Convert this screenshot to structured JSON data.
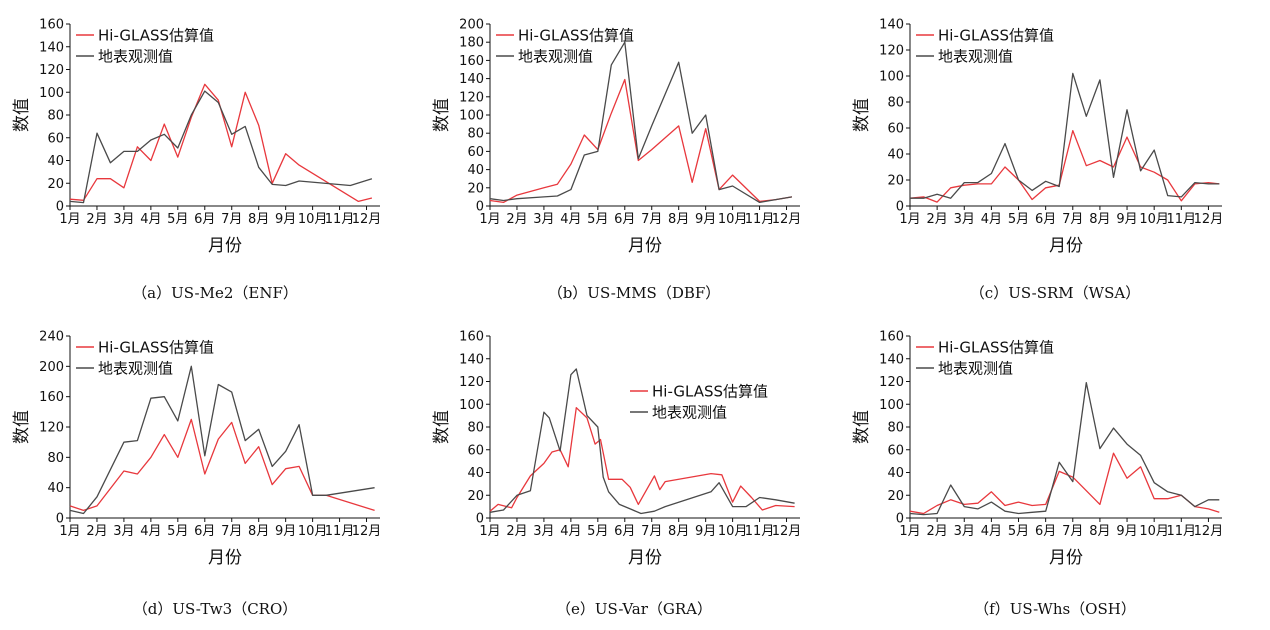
{
  "colors": {
    "estimate": "#e8383d",
    "ground": "#4a4a4a"
  },
  "chart_data": [
    {
      "type": "line",
      "caption": "（a）US-Me2（ENF）",
      "xlabel": "月份",
      "ylabel": "数值",
      "x_ticks": [
        "1月",
        "2月",
        "3月",
        "4月",
        "5月",
        "6月",
        "7月",
        "8月",
        "9月",
        "10月",
        "11月",
        "12月"
      ],
      "xlim": [
        1,
        12.5
      ],
      "ylim": [
        0,
        160
      ],
      "y_ticks": [
        0,
        20,
        40,
        60,
        80,
        100,
        120,
        140,
        160
      ],
      "legend_position": "top-left",
      "series": [
        {
          "name": "Hi-GLASS估算值",
          "color_key": "estimate",
          "x": [
            1,
            1.5,
            2,
            2.5,
            3,
            3.5,
            4,
            4.5,
            5,
            5.5,
            6,
            6.5,
            7,
            7.5,
            8,
            8.5,
            9,
            9.5,
            11.7,
            12.2
          ],
          "y": [
            6,
            5,
            24,
            24,
            16,
            52,
            40,
            72,
            43,
            78,
            107,
            93,
            52,
            100,
            71,
            20,
            46,
            36,
            4,
            7
          ]
        },
        {
          "name": "地表观测值",
          "color_key": "ground",
          "x": [
            1,
            1.5,
            2,
            2.5,
            3,
            3.5,
            4,
            4.5,
            5,
            5.5,
            6,
            6.5,
            7,
            7.5,
            8,
            8.5,
            9,
            9.5,
            11.4,
            12.2
          ],
          "y": [
            4,
            3,
            64,
            38,
            48,
            48,
            58,
            63,
            51,
            80,
            101,
            91,
            63,
            70,
            34,
            19,
            18,
            22,
            18,
            24
          ]
        }
      ]
    },
    {
      "type": "line",
      "caption": "（b）US-MMS（DBF）",
      "xlabel": "月份",
      "ylabel": "数值",
      "x_ticks": [
        "1月",
        "2月",
        "3月",
        "4月",
        "5月",
        "6月",
        "7月",
        "8月",
        "9月",
        "10月",
        "11月",
        "12月"
      ],
      "xlim": [
        1,
        12.5
      ],
      "ylim": [
        0,
        200
      ],
      "y_ticks": [
        0,
        20,
        40,
        60,
        80,
        100,
        120,
        140,
        160,
        180,
        200
      ],
      "legend_position": "top-left",
      "series": [
        {
          "name": "Hi-GLASS估算值",
          "color_key": "estimate",
          "x": [
            1,
            1.5,
            2,
            3,
            3.5,
            4,
            4.5,
            5,
            5.5,
            6,
            6.5,
            7,
            8,
            8.5,
            9,
            9.5,
            10,
            11,
            11.6,
            12.2
          ],
          "y": [
            6,
            4,
            12,
            20,
            24,
            46,
            78,
            62,
            102,
            139,
            50,
            62,
            88,
            26,
            85,
            18,
            34,
            5,
            7,
            10
          ]
        },
        {
          "name": "地表观测值",
          "color_key": "ground",
          "x": [
            1,
            1.5,
            2,
            3,
            3.5,
            4,
            4.5,
            5,
            5.5,
            6,
            6.5,
            7,
            8,
            8.5,
            9,
            9.5,
            10,
            11,
            11.6,
            12.2
          ],
          "y": [
            8,
            6,
            8,
            10,
            11,
            18,
            56,
            60,
            155,
            180,
            52,
            88,
            158,
            80,
            100,
            18,
            22,
            4,
            7,
            10
          ]
        }
      ]
    },
    {
      "type": "line",
      "caption": "（c）US-SRM（WSA）",
      "xlabel": "月份",
      "ylabel": "数值",
      "x_ticks": [
        "1月",
        "2月",
        "3月",
        "4月",
        "5月",
        "6月",
        "7月",
        "8月",
        "9月",
        "10月",
        "11月",
        "12月"
      ],
      "xlim": [
        1,
        12.5
      ],
      "ylim": [
        0,
        140
      ],
      "y_ticks": [
        0,
        20,
        40,
        60,
        80,
        100,
        120,
        140
      ],
      "legend_position": "top-left",
      "series": [
        {
          "name": "Hi-GLASS估算值",
          "color_key": "estimate",
          "x": [
            1,
            1.5,
            2,
            2.5,
            3,
            3.5,
            4,
            4.5,
            5,
            5.5,
            6,
            6.5,
            7,
            7.5,
            8,
            8.5,
            9,
            9.5,
            10,
            10.5,
            11,
            11.5,
            12,
            12.4
          ],
          "y": [
            6,
            7,
            3,
            14,
            16,
            17,
            17,
            30,
            20,
            5,
            14,
            16,
            58,
            31,
            35,
            30,
            53,
            30,
            26,
            20,
            4,
            17,
            18,
            17
          ]
        },
        {
          "name": "地表观测值",
          "color_key": "ground",
          "x": [
            1,
            1.5,
            2,
            2.5,
            3,
            3.5,
            4,
            4.5,
            5,
            5.5,
            6,
            6.5,
            7,
            7.5,
            8,
            8.5,
            9,
            9.5,
            10,
            10.5,
            11,
            11.5,
            12,
            12.4
          ],
          "y": [
            6,
            6,
            9,
            6,
            18,
            18,
            25,
            48,
            20,
            12,
            19,
            15,
            102,
            69,
            97,
            22,
            74,
            27,
            43,
            8,
            7,
            18,
            17,
            17
          ]
        }
      ]
    },
    {
      "type": "line",
      "caption": "（d）US-Tw3（CRO）",
      "xlabel": "月份",
      "ylabel": "数值",
      "x_ticks": [
        "1月",
        "2月",
        "3月",
        "4月",
        "5月",
        "6月",
        "7月",
        "8月",
        "9月",
        "10月",
        "11月",
        "12月"
      ],
      "xlim": [
        1,
        12.5
      ],
      "ylim": [
        0,
        240
      ],
      "y_ticks": [
        0,
        40,
        80,
        120,
        160,
        200,
        240
      ],
      "legend_position": "top-left",
      "series": [
        {
          "name": "Hi-GLASS估算值",
          "color_key": "estimate",
          "x": [
            1,
            1.5,
            2,
            3,
            3.5,
            4,
            4.5,
            5,
            5.5,
            6,
            6.5,
            7,
            7.5,
            8,
            8.5,
            9,
            9.5,
            10,
            10.5,
            12.3
          ],
          "y": [
            16,
            10,
            16,
            62,
            58,
            80,
            110,
            80,
            130,
            58,
            104,
            126,
            72,
            94,
            44,
            65,
            68,
            30,
            30,
            10
          ]
        },
        {
          "name": "地表观测值",
          "color_key": "ground",
          "x": [
            1,
            1.5,
            2,
            3,
            3.5,
            4,
            4.5,
            5,
            5.5,
            6,
            6.5,
            7,
            7.5,
            8,
            8.5,
            9,
            9.5,
            10,
            10.5,
            12.3
          ],
          "y": [
            10,
            6,
            28,
            100,
            102,
            158,
            160,
            128,
            200,
            82,
            176,
            166,
            102,
            117,
            68,
            88,
            123,
            30,
            30,
            40
          ]
        }
      ]
    },
    {
      "type": "line",
      "caption": "（e）US-Var（GRA）",
      "xlabel": "月份",
      "ylabel": "数值",
      "x_ticks": [
        "1月",
        "2月",
        "3月",
        "4月",
        "5月",
        "6月",
        "7月",
        "8月",
        "9月",
        "10月",
        "11月",
        "12月"
      ],
      "xlim": [
        1,
        12.5
      ],
      "ylim": [
        0,
        160
      ],
      "y_ticks": [
        0,
        20,
        40,
        60,
        80,
        100,
        120,
        140,
        160
      ],
      "legend_position": "center-right",
      "series": [
        {
          "name": "Hi-GLASS估算值",
          "color_key": "estimate",
          "x": [
            1,
            1.3,
            1.8,
            2,
            2.5,
            3,
            3.3,
            3.6,
            3.9,
            4.2,
            4.6,
            4.9,
            5.1,
            5.4,
            5.9,
            6.2,
            6.5,
            7.1,
            7.3,
            7.5,
            9.2,
            9.6,
            10,
            10.3,
            10.7,
            11.1,
            11.6,
            12.3
          ],
          "y": [
            6,
            12,
            9,
            18,
            37,
            48,
            58,
            60,
            45,
            97,
            88,
            65,
            69,
            34,
            34,
            27,
            12,
            37,
            25,
            32,
            39,
            38,
            14,
            28,
            18,
            7,
            11,
            10
          ]
        },
        {
          "name": "地表观测值",
          "color_key": "ground",
          "x": [
            1,
            1.5,
            2,
            2.5,
            3,
            3.2,
            3.6,
            4,
            4.2,
            4.6,
            5,
            5.2,
            5.4,
            5.8,
            6.2,
            6.6,
            7.1,
            7.5,
            9.2,
            9.5,
            10,
            10.5,
            11,
            11.6,
            12.3
          ],
          "y": [
            5,
            7,
            20,
            24,
            93,
            88,
            59,
            126,
            131,
            90,
            80,
            36,
            23,
            12,
            8,
            4,
            6,
            10,
            23,
            31,
            10,
            10,
            18,
            16,
            13
          ]
        }
      ]
    },
    {
      "type": "line",
      "caption": "（f）US-Whs（OSH）",
      "xlabel": "月份",
      "ylabel": "数值",
      "x_ticks": [
        "1月",
        "2月",
        "3月",
        "4月",
        "5月",
        "6月",
        "7月",
        "8月",
        "9月",
        "10月",
        "11月",
        "12月"
      ],
      "xlim": [
        1,
        12.5
      ],
      "ylim": [
        0,
        160
      ],
      "y_ticks": [
        0,
        20,
        40,
        60,
        80,
        100,
        120,
        140,
        160
      ],
      "legend_position": "top-left",
      "series": [
        {
          "name": "Hi-GLASS估算值",
          "color_key": "estimate",
          "x": [
            1,
            1.5,
            2,
            2.5,
            3,
            3.5,
            4,
            4.5,
            5,
            5.5,
            6,
            6.5,
            7,
            7.5,
            8,
            8.5,
            9,
            9.5,
            10,
            10.5,
            11,
            11.5,
            12,
            12.4
          ],
          "y": [
            6,
            4,
            11,
            16,
            12,
            13,
            23,
            11,
            14,
            11,
            12,
            41,
            36,
            24,
            12,
            57,
            35,
            45,
            17,
            17,
            20,
            10,
            8,
            5
          ]
        },
        {
          "name": "地表观测值",
          "color_key": "ground",
          "x": [
            1,
            1.5,
            2,
            2.5,
            3,
            3.5,
            4,
            4.5,
            5,
            5.5,
            6,
            6.5,
            7,
            7.5,
            8,
            8.5,
            9,
            9.5,
            10,
            10.5,
            11,
            11.5,
            12,
            12.4
          ],
          "y": [
            4,
            3,
            4,
            29,
            10,
            8,
            14,
            6,
            4,
            5,
            6,
            49,
            32,
            119,
            61,
            79,
            65,
            55,
            31,
            23,
            20,
            10,
            16,
            16
          ]
        }
      ]
    }
  ]
}
